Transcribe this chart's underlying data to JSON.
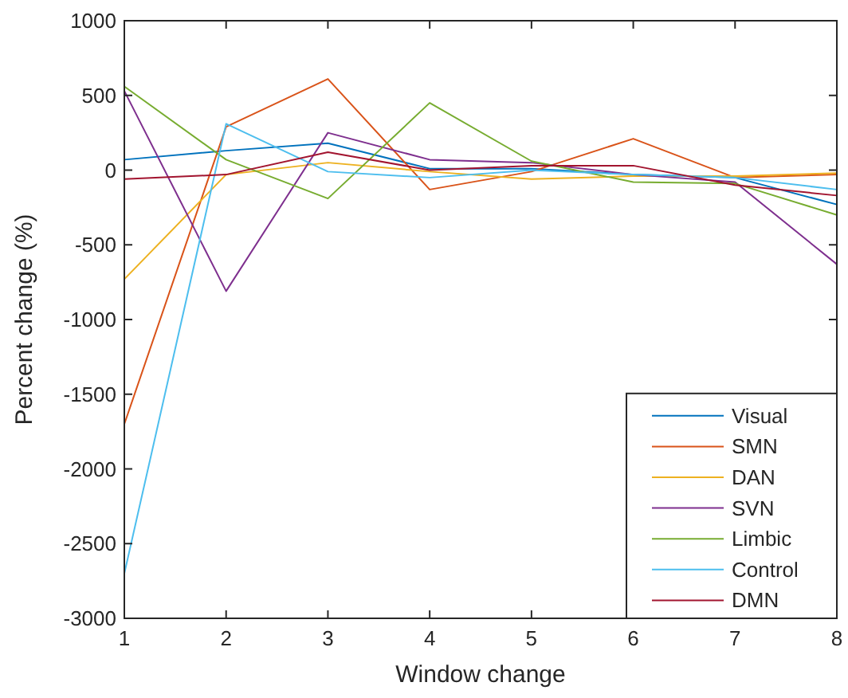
{
  "chart_data": {
    "type": "line",
    "xlabel": "Window change",
    "ylabel": "Percent change (%)",
    "x": [
      1,
      2,
      3,
      4,
      5,
      6,
      7,
      8
    ],
    "xlim": [
      1,
      8
    ],
    "xticks": [
      1,
      2,
      3,
      4,
      5,
      6,
      7,
      8
    ],
    "ylim": [
      -3000,
      1000
    ],
    "yticks": [
      -3000,
      -2500,
      -2000,
      -1500,
      -1000,
      -500,
      0,
      500,
      1000
    ],
    "grid": false,
    "legend": "bottom right",
    "series": [
      {
        "name": "Visual",
        "color": "#0072bd",
        "values": [
          70,
          130,
          180,
          10,
          10,
          -30,
          -50,
          -230
        ]
      },
      {
        "name": "SMN",
        "color": "#d95319",
        "values": [
          -1700,
          290,
          610,
          -130,
          -10,
          210,
          -50,
          -30
        ]
      },
      {
        "name": "DAN",
        "color": "#edb120",
        "values": [
          -730,
          -30,
          50,
          -10,
          -60,
          -40,
          -40,
          -20
        ]
      },
      {
        "name": "SVN",
        "color": "#7e2f8e",
        "values": [
          530,
          -810,
          250,
          70,
          50,
          -30,
          -80,
          -630
        ]
      },
      {
        "name": "Limbic",
        "color": "#77ac30",
        "values": [
          560,
          70,
          -190,
          450,
          60,
          -80,
          -90,
          -300
        ]
      },
      {
        "name": "Control",
        "color": "#4dbeee",
        "values": [
          -2700,
          310,
          -10,
          -50,
          0,
          -30,
          -50,
          -130
        ]
      },
      {
        "name": "DMN",
        "color": "#a2142f",
        "values": [
          -60,
          -30,
          120,
          0,
          30,
          30,
          -100,
          -170
        ]
      }
    ]
  }
}
